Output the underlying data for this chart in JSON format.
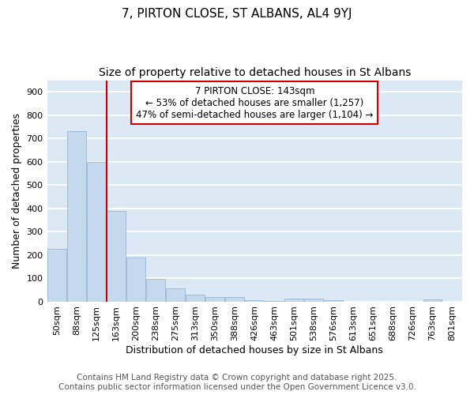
{
  "title": "7, PIRTON CLOSE, ST ALBANS, AL4 9YJ",
  "subtitle": "Size of property relative to detached houses in St Albans",
  "xlabel": "Distribution of detached houses by size in St Albans",
  "ylabel": "Number of detached properties",
  "categories": [
    "50sqm",
    "88sqm",
    "125sqm",
    "163sqm",
    "200sqm",
    "238sqm",
    "275sqm",
    "313sqm",
    "350sqm",
    "388sqm",
    "426sqm",
    "463sqm",
    "501sqm",
    "538sqm",
    "576sqm",
    "613sqm",
    "651sqm",
    "688sqm",
    "726sqm",
    "763sqm",
    "801sqm"
  ],
  "values": [
    225,
    730,
    600,
    390,
    190,
    97,
    57,
    30,
    20,
    18,
    6,
    3,
    11,
    11,
    5,
    0,
    0,
    0,
    0,
    8,
    0
  ],
  "bar_color": "#c5d9ee",
  "bar_edge_color": "#a0bcd8",
  "vline_x": 2.5,
  "vline_color": "#cc0000",
  "annotation_text": "7 PIRTON CLOSE: 143sqm\n← 53% of detached houses are smaller (1,257)\n47% of semi-detached houses are larger (1,104) →",
  "annotation_box_color": "#ffffff",
  "annotation_box_edge_color": "#cc0000",
  "ylim": [
    0,
    950
  ],
  "yticks": [
    0,
    100,
    200,
    300,
    400,
    500,
    600,
    700,
    800,
    900
  ],
  "bg_color": "#dce9f5",
  "grid_color": "#ffffff",
  "fig_bg_color": "#ffffff",
  "footer_line1": "Contains HM Land Registry data © Crown copyright and database right 2025.",
  "footer_line2": "Contains public sector information licensed under the Open Government Licence v3.0.",
  "title_fontsize": 11,
  "subtitle_fontsize": 10,
  "axis_label_fontsize": 9,
  "tick_fontsize": 8,
  "annotation_fontsize": 8.5,
  "footer_fontsize": 7.5
}
